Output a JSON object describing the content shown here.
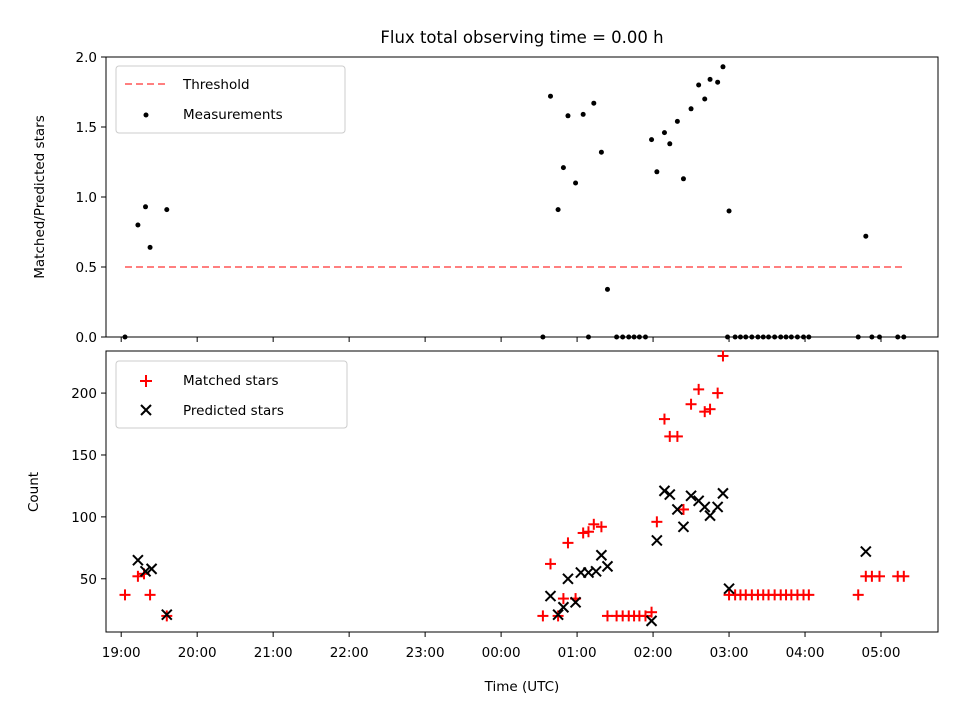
{
  "chart_data": [
    {
      "type": "scatter",
      "title": "Flux total observing time = 0.00 h",
      "xlabel": "",
      "ylabel": "Matched/Predicted stars",
      "xlim": [
        -0.2,
        10.75
      ],
      "ylim": [
        0,
        2.0
      ],
      "yticks": [
        0.0,
        0.5,
        1.0,
        1.5,
        2.0
      ],
      "ytick_labels": [
        "0.0",
        "0.5",
        "1.0",
        "1.5",
        "2.0"
      ],
      "x_unit": "hours since 19:00 UTC",
      "legend_position": "top-left",
      "threshold": {
        "name": "Threshold",
        "value": 0.5,
        "x_range": [
          0.05,
          10.3
        ],
        "color": "#ff7f7f",
        "style": "dashed"
      },
      "series": [
        {
          "name": "Measurements",
          "color": "#000000",
          "marker": "dot",
          "points": [
            [
              0.05,
              0.0
            ],
            [
              0.22,
              0.8
            ],
            [
              0.32,
              0.93
            ],
            [
              0.38,
              0.64
            ],
            [
              0.6,
              0.91
            ],
            [
              5.55,
              0.0
            ],
            [
              5.65,
              1.72
            ],
            [
              5.75,
              0.91
            ],
            [
              5.82,
              1.21
            ],
            [
              5.88,
              1.58
            ],
            [
              5.98,
              1.1
            ],
            [
              6.08,
              1.59
            ],
            [
              6.15,
              0.0
            ],
            [
              6.22,
              1.67
            ],
            [
              6.32,
              1.32
            ],
            [
              6.4,
              0.34
            ],
            [
              6.52,
              0.0
            ],
            [
              6.6,
              0.0
            ],
            [
              6.68,
              0.0
            ],
            [
              6.75,
              0.0
            ],
            [
              6.82,
              0.0
            ],
            [
              6.9,
              0.0
            ],
            [
              6.98,
              1.41
            ],
            [
              7.05,
              1.18
            ],
            [
              7.15,
              1.46
            ],
            [
              7.22,
              1.38
            ],
            [
              7.32,
              1.54
            ],
            [
              7.4,
              1.13
            ],
            [
              7.5,
              1.63
            ],
            [
              7.6,
              1.8
            ],
            [
              7.68,
              1.7
            ],
            [
              7.75,
              1.84
            ],
            [
              7.85,
              1.82
            ],
            [
              7.92,
              1.93
            ],
            [
              7.98,
              0.0
            ],
            [
              8.0,
              0.9
            ],
            [
              8.08,
              0.0
            ],
            [
              8.15,
              0.0
            ],
            [
              8.22,
              0.0
            ],
            [
              8.3,
              0.0
            ],
            [
              8.38,
              0.0
            ],
            [
              8.45,
              0.0
            ],
            [
              8.52,
              0.0
            ],
            [
              8.6,
              0.0
            ],
            [
              8.68,
              0.0
            ],
            [
              8.75,
              0.0
            ],
            [
              8.82,
              0.0
            ],
            [
              8.9,
              0.0
            ],
            [
              8.98,
              0.0
            ],
            [
              9.05,
              0.0
            ],
            [
              9.7,
              0.0
            ],
            [
              9.8,
              0.72
            ],
            [
              9.88,
              0.0
            ],
            [
              9.98,
              0.0
            ],
            [
              10.22,
              0.0
            ],
            [
              10.3,
              0.0
            ]
          ]
        }
      ]
    },
    {
      "type": "scatter",
      "title": "",
      "xlabel": "Time (UTC)",
      "ylabel": "Count",
      "xlim": [
        -0.2,
        10.75
      ],
      "ylim": [
        7,
        234
      ],
      "yticks": [
        50,
        100,
        150,
        200
      ],
      "ytick_labels": [
        "50",
        "100",
        "150",
        "200"
      ],
      "xticks": [
        0,
        1,
        2,
        3,
        4,
        5,
        6,
        7,
        8,
        9,
        10
      ],
      "xtick_labels": [
        "19:00",
        "20:00",
        "21:00",
        "22:00",
        "23:00",
        "00:00",
        "01:00",
        "02:00",
        "03:00",
        "04:00",
        "05:00"
      ],
      "x_unit": "hours since 19:00 UTC",
      "legend_position": "top-left",
      "series": [
        {
          "name": "Matched stars",
          "color": "#ff0000",
          "marker": "plus",
          "points": [
            [
              0.05,
              37
            ],
            [
              0.22,
              52
            ],
            [
              0.3,
              54
            ],
            [
              0.38,
              37
            ],
            [
              0.6,
              20
            ],
            [
              5.55,
              20
            ],
            [
              5.65,
              62
            ],
            [
              5.75,
              20
            ],
            [
              5.82,
              34
            ],
            [
              5.88,
              79
            ],
            [
              5.98,
              34
            ],
            [
              6.08,
              87
            ],
            [
              6.15,
              88
            ],
            [
              6.22,
              94
            ],
            [
              6.32,
              92
            ],
            [
              6.4,
              20
            ],
            [
              6.52,
              20
            ],
            [
              6.6,
              20
            ],
            [
              6.68,
              20
            ],
            [
              6.75,
              20
            ],
            [
              6.82,
              20
            ],
            [
              6.9,
              20
            ],
            [
              6.98,
              23
            ],
            [
              7.05,
              96
            ],
            [
              7.15,
              179
            ],
            [
              7.22,
              165
            ],
            [
              7.32,
              165
            ],
            [
              7.4,
              106
            ],
            [
              7.5,
              191
            ],
            [
              7.6,
              203
            ],
            [
              7.68,
              185
            ],
            [
              7.75,
              187
            ],
            [
              7.85,
              200
            ],
            [
              7.92,
              230
            ],
            [
              8.0,
              37
            ],
            [
              8.08,
              37
            ],
            [
              8.15,
              37
            ],
            [
              8.22,
              37
            ],
            [
              8.3,
              37
            ],
            [
              8.38,
              37
            ],
            [
              8.45,
              37
            ],
            [
              8.52,
              37
            ],
            [
              8.6,
              37
            ],
            [
              8.68,
              37
            ],
            [
              8.75,
              37
            ],
            [
              8.82,
              37
            ],
            [
              8.9,
              37
            ],
            [
              8.98,
              37
            ],
            [
              9.05,
              37
            ],
            [
              9.7,
              37
            ],
            [
              9.8,
              52
            ],
            [
              9.88,
              52
            ],
            [
              9.98,
              52
            ],
            [
              10.22,
              52
            ],
            [
              10.3,
              52
            ]
          ]
        },
        {
          "name": "Predicted stars",
          "color": "#000000",
          "marker": "x",
          "points": [
            [
              0.22,
              65
            ],
            [
              0.32,
              56
            ],
            [
              0.4,
              58
            ],
            [
              0.6,
              21
            ],
            [
              5.65,
              36
            ],
            [
              5.75,
              21
            ],
            [
              5.82,
              27
            ],
            [
              5.88,
              50
            ],
            [
              5.98,
              31
            ],
            [
              6.05,
              55
            ],
            [
              6.15,
              55
            ],
            [
              6.25,
              56
            ],
            [
              6.32,
              69
            ],
            [
              6.4,
              60
            ],
            [
              6.98,
              16
            ],
            [
              7.05,
              81
            ],
            [
              7.15,
              121
            ],
            [
              7.22,
              118
            ],
            [
              7.32,
              106
            ],
            [
              7.4,
              92
            ],
            [
              7.5,
              117
            ],
            [
              7.6,
              113
            ],
            [
              7.68,
              108
            ],
            [
              7.75,
              101
            ],
            [
              7.85,
              108
            ],
            [
              7.92,
              119
            ],
            [
              8.0,
              42
            ],
            [
              9.8,
              72
            ]
          ]
        }
      ]
    }
  ]
}
